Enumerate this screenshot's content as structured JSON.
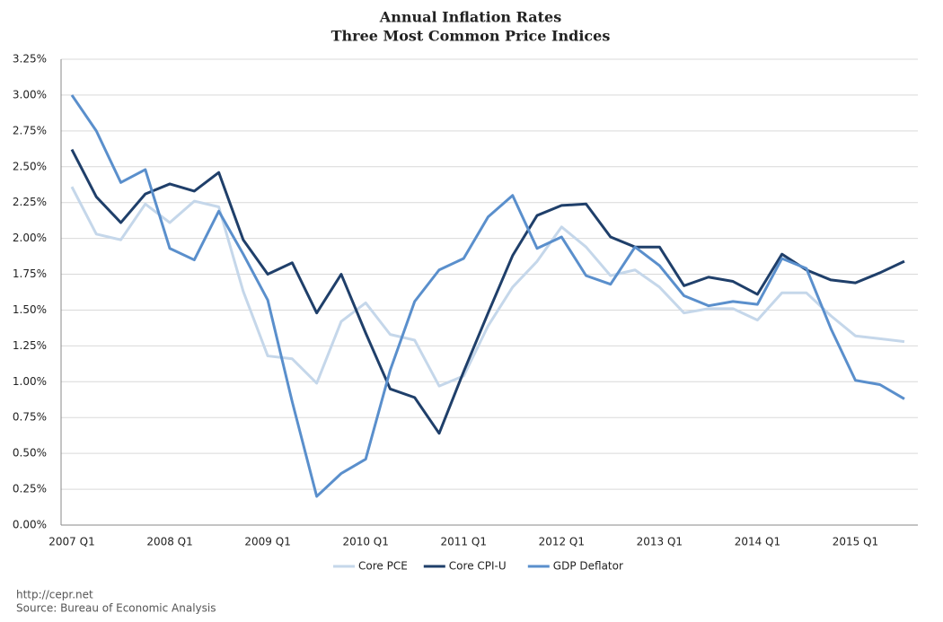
{
  "chart_data": {
    "type": "line",
    "title": "Annual Inflation Rates",
    "subtitle": "Three Most Common Price Indices",
    "categories": [
      "2007 Q1",
      null,
      null,
      null,
      "2008 Q1",
      null,
      null,
      null,
      "2009 Q1",
      null,
      null,
      null,
      "2010 Q1",
      null,
      null,
      null,
      "2011 Q1",
      null,
      null,
      null,
      "2012 Q1",
      null,
      null,
      null,
      "2013 Q1",
      null,
      null,
      null,
      "2014 Q1",
      null,
      null,
      null,
      "2015 Q1",
      null,
      null
    ],
    "series": [
      {
        "name": "Core PCE",
        "color": "#c5d7ea",
        "values": [
          2.36,
          2.03,
          1.99,
          2.24,
          2.11,
          2.26,
          2.22,
          1.63,
          1.18,
          1.16,
          0.99,
          1.42,
          1.55,
          1.33,
          1.29,
          0.97,
          1.04,
          1.39,
          1.66,
          1.84,
          2.08,
          1.94,
          1.74,
          1.78,
          1.66,
          1.48,
          1.51,
          1.51,
          1.43,
          1.62,
          1.62,
          1.46,
          1.32,
          1.3,
          1.28
        ]
      },
      {
        "name": "Core CPI-U",
        "color": "#1f3f6a",
        "values": [
          2.62,
          2.29,
          2.11,
          2.31,
          2.38,
          2.33,
          2.46,
          1.99,
          1.75,
          1.83,
          1.48,
          1.75,
          1.34,
          0.95,
          0.89,
          0.64,
          1.07,
          1.48,
          1.88,
          2.16,
          2.23,
          2.24,
          2.01,
          1.94,
          1.94,
          1.67,
          1.73,
          1.7,
          1.61,
          1.89,
          1.78,
          1.71,
          1.69,
          1.76,
          1.84
        ]
      },
      {
        "name": "GDP Deflator",
        "color": "#5a8fcc",
        "values": [
          3.0,
          2.75,
          2.39,
          2.48,
          1.93,
          1.85,
          2.19,
          1.89,
          1.57,
          0.86,
          0.2,
          0.36,
          0.46,
          1.08,
          1.56,
          1.78,
          1.86,
          2.15,
          2.3,
          1.93,
          2.01,
          1.74,
          1.68,
          1.94,
          1.81,
          1.6,
          1.53,
          1.56,
          1.54,
          1.86,
          1.79,
          1.37,
          1.01,
          0.98,
          0.88
        ]
      }
    ],
    "ylim": [
      0,
      3.25
    ],
    "yticks": [
      {
        "value": 0,
        "label": "0.00%"
      },
      {
        "value": 0.25,
        "label": "0.25%"
      },
      {
        "value": 0.5,
        "label": "0.50%"
      },
      {
        "value": 0.75,
        "label": "0.75%"
      },
      {
        "value": 1,
        "label": "1.00%"
      },
      {
        "value": 1.25,
        "label": "1.25%"
      },
      {
        "value": 1.5,
        "label": "1.50%"
      },
      {
        "value": 1.75,
        "label": "1.75%"
      },
      {
        "value": 2,
        "label": "2.00%"
      },
      {
        "value": 2.25,
        "label": "2.25%"
      },
      {
        "value": 2.5,
        "label": "2.50%"
      },
      {
        "value": 2.75,
        "label": "2.75%"
      },
      {
        "value": 3,
        "label": "3.00%"
      },
      {
        "value": 3.25,
        "label": "3.25%"
      }
    ],
    "grid": true,
    "legend": "bottom",
    "footnotes": [
      "http://cepr.net",
      "Source: Bureau of Economic Analysis"
    ]
  }
}
